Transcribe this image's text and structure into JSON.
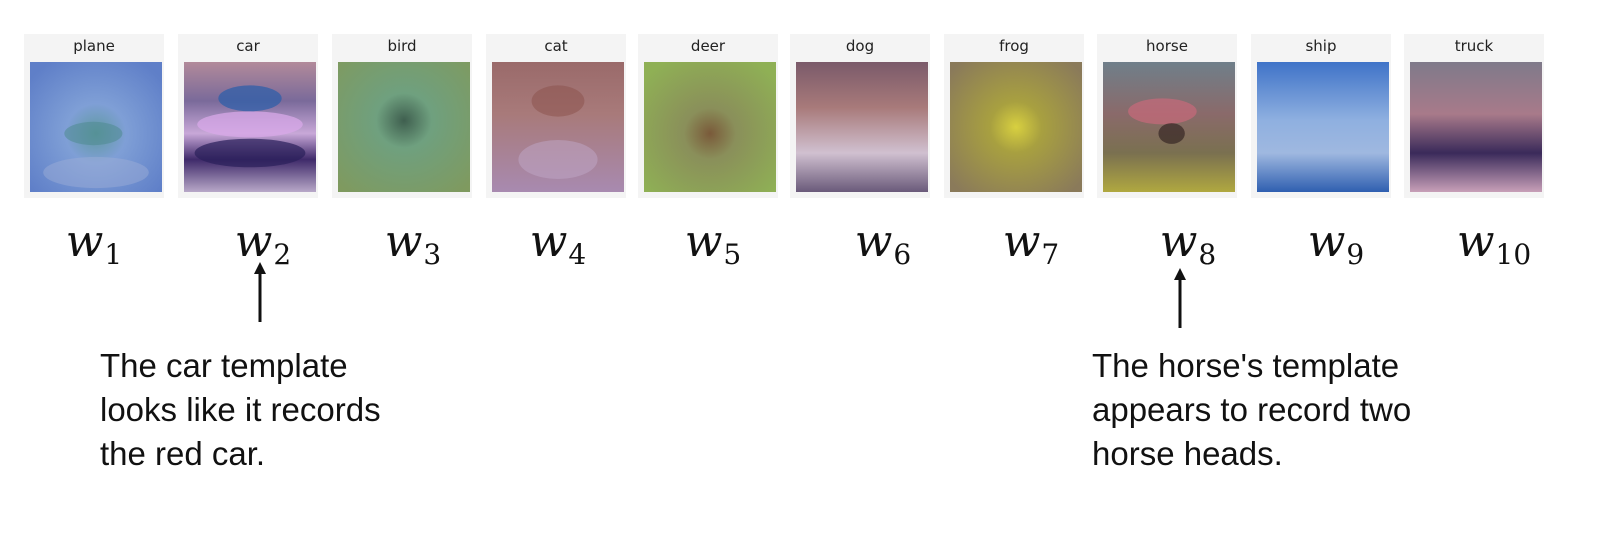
{
  "templates": [
    {
      "class_label": "plane",
      "weight": "w",
      "index": "1"
    },
    {
      "class_label": "car",
      "weight": "w",
      "index": "2"
    },
    {
      "class_label": "bird",
      "weight": "w",
      "index": "3"
    },
    {
      "class_label": "cat",
      "weight": "w",
      "index": "4"
    },
    {
      "class_label": "deer",
      "weight": "w",
      "index": "5"
    },
    {
      "class_label": "dog",
      "weight": "w",
      "index": "6"
    },
    {
      "class_label": "frog",
      "weight": "w",
      "index": "7"
    },
    {
      "class_label": "horse",
      "weight": "w",
      "index": "8"
    },
    {
      "class_label": "ship",
      "weight": "w",
      "index": "9"
    },
    {
      "class_label": "truck",
      "weight": "w",
      "index": "10"
    }
  ],
  "annotations": {
    "car": {
      "lines": [
        "The car template",
        "looks like it records",
        "the red car."
      ]
    },
    "horse": {
      "lines": [
        "The horse's template",
        "appears to record two",
        "horse heads."
      ]
    }
  },
  "colors": {
    "plane": "#6f8fcf",
    "car": "#4a3a8a",
    "bird": "#6f9f6a",
    "cat": "#a87a8a",
    "deer": "#8faa55",
    "dog": "#8a7a8a",
    "frog": "#b3a850",
    "horse": "#8f8a5a",
    "ship": "#3f73c8",
    "truck": "#6a4a6a",
    "text": "#111111"
  }
}
